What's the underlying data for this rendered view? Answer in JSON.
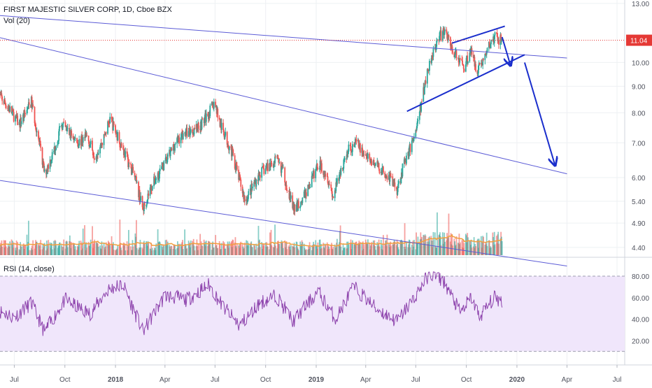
{
  "header": {
    "symbol_line": "FIRST MAJESTIC SILVER CORP, 1D, Cboe BZX",
    "vol_label": "Vol (20)"
  },
  "rsi_label": "RSI (14, close)",
  "last_price_badge": "11.04",
  "colors": {
    "up": "#26a69a",
    "down": "#ef5350",
    "channel": "#5b5bd6",
    "annotation": "#1a2ecc",
    "rsi_line": "#8e44ad",
    "rsi_band": "#f0e6fb",
    "volume_ma": "#f0a040",
    "last_price": "#e53935"
  },
  "chart_data": [
    {
      "type": "candlestick",
      "title": "FIRST MAJESTIC SILVER CORP, 1D, Cboe BZX",
      "scale": "log",
      "ylim": [
        4.25,
        13.2
      ],
      "y_ticks": [
        "13.00",
        "11.04",
        "10.00",
        "9.00",
        "8.00",
        "7.00",
        "6.00",
        "5.40",
        "4.90",
        "4.40"
      ],
      "y_tick_values": [
        13.0,
        11.04,
        10.0,
        9.0,
        8.0,
        7.0,
        6.0,
        5.4,
        4.9,
        4.4
      ],
      "x_ticks": [
        "Jul",
        "Oct",
        "2018",
        "Apr",
        "Jul",
        "Oct",
        "2019",
        "Apr",
        "Jul",
        "Oct",
        "2020",
        "Apr",
        "Jul"
      ],
      "x_tick_dates": [
        "2017-07-01",
        "2017-10-01",
        "2018-01-01",
        "2018-04-01",
        "2018-07-01",
        "2018-10-01",
        "2019-01-01",
        "2019-04-01",
        "2019-07-01",
        "2019-10-01",
        "2020-01-01",
        "2020-04-01",
        "2020-07-01"
      ],
      "last_price": 11.04,
      "price_path": [
        [
          "2017-06-01",
          8.7
        ],
        [
          "2017-06-20",
          8.2
        ],
        [
          "2017-07-10",
          7.6
        ],
        [
          "2017-08-01",
          8.4
        ],
        [
          "2017-08-12",
          7.3
        ],
        [
          "2017-08-25",
          6.1
        ],
        [
          "2017-09-10",
          6.7
        ],
        [
          "2017-09-25",
          7.6
        ],
        [
          "2017-10-10",
          7.3
        ],
        [
          "2017-10-25",
          7.0
        ],
        [
          "2017-11-10",
          7.2
        ],
        [
          "2017-11-25",
          6.6
        ],
        [
          "2017-12-10",
          7.1
        ],
        [
          "2017-12-22",
          7.8
        ],
        [
          "2018-01-05",
          7.2
        ],
        [
          "2018-01-20",
          6.6
        ],
        [
          "2018-02-05",
          6.0
        ],
        [
          "2018-02-20",
          5.2
        ],
        [
          "2018-03-05",
          5.7
        ],
        [
          "2018-03-20",
          6.1
        ],
        [
          "2018-04-05",
          6.5
        ],
        [
          "2018-04-20",
          7.0
        ],
        [
          "2018-05-05",
          7.3
        ],
        [
          "2018-05-20",
          7.4
        ],
        [
          "2018-06-05",
          7.6
        ],
        [
          "2018-06-20",
          8.0
        ],
        [
          "2018-07-01",
          8.4
        ],
        [
          "2018-07-10",
          7.6
        ],
        [
          "2018-07-20",
          7.2
        ],
        [
          "2018-08-01",
          6.7
        ],
        [
          "2018-08-15",
          5.9
        ],
        [
          "2018-08-25",
          5.4
        ],
        [
          "2018-09-05",
          5.7
        ],
        [
          "2018-09-20",
          6.1
        ],
        [
          "2018-10-05",
          6.3
        ],
        [
          "2018-10-20",
          6.5
        ],
        [
          "2018-11-01",
          6.2
        ],
        [
          "2018-11-12",
          5.6
        ],
        [
          "2018-11-22",
          5.2
        ],
        [
          "2018-12-05",
          5.4
        ],
        [
          "2018-12-20",
          5.8
        ],
        [
          "2019-01-05",
          6.4
        ],
        [
          "2019-01-20",
          6.1
        ],
        [
          "2019-02-01",
          5.5
        ],
        [
          "2019-02-15",
          6.2
        ],
        [
          "2019-03-01",
          6.8
        ],
        [
          "2019-03-15",
          7.0
        ],
        [
          "2019-04-01",
          6.6
        ],
        [
          "2019-04-15",
          6.4
        ],
        [
          "2019-05-01",
          6.2
        ],
        [
          "2019-05-15",
          6.0
        ],
        [
          "2019-05-28",
          5.7
        ],
        [
          "2019-06-10",
          6.4
        ],
        [
          "2019-06-22",
          6.9
        ],
        [
          "2019-07-01",
          7.4
        ],
        [
          "2019-07-10",
          8.2
        ],
        [
          "2019-07-20",
          9.4
        ],
        [
          "2019-08-01",
          10.5
        ],
        [
          "2019-08-12",
          11.2
        ],
        [
          "2019-08-25",
          11.5
        ],
        [
          "2019-09-05",
          10.6
        ],
        [
          "2019-09-15",
          10.2
        ],
        [
          "2019-09-28",
          9.8
        ],
        [
          "2019-10-08",
          10.6
        ],
        [
          "2019-10-20",
          9.7
        ],
        [
          "2019-11-01",
          10.1
        ],
        [
          "2019-11-12",
          10.8
        ],
        [
          "2019-11-22",
          11.2
        ],
        [
          "2019-12-05",
          11.0
        ]
      ]
    },
    {
      "type": "bar",
      "title": "Vol (20)",
      "series": [
        {
          "values": "daily volume bars with 20-period moving average"
        }
      ]
    },
    {
      "type": "line",
      "title": "RSI (14, close)",
      "ylim": [
        0,
        95
      ],
      "y_ticks": [
        "80.00",
        "60.00",
        "40.00",
        "20.00"
      ],
      "y_tick_values": [
        80,
        60,
        40,
        20
      ],
      "band": [
        10,
        80
      ],
      "rsi_path": [
        [
          "2017-06-01",
          48
        ],
        [
          "2017-07-01",
          42
        ],
        [
          "2017-08-01",
          55
        ],
        [
          "2017-08-25",
          28
        ],
        [
          "2017-10-01",
          58
        ],
        [
          "2017-11-15",
          45
        ],
        [
          "2017-12-20",
          68
        ],
        [
          "2018-01-15",
          72
        ],
        [
          "2018-02-20",
          28
        ],
        [
          "2018-04-01",
          62
        ],
        [
          "2018-05-10",
          58
        ],
        [
          "2018-06-20",
          72
        ],
        [
          "2018-07-15",
          52
        ],
        [
          "2018-08-15",
          34
        ],
        [
          "2018-09-20",
          55
        ],
        [
          "2018-10-20",
          62
        ],
        [
          "2018-11-20",
          38
        ],
        [
          "2019-01-05",
          66
        ],
        [
          "2019-02-05",
          40
        ],
        [
          "2019-03-10",
          70
        ],
        [
          "2019-04-20",
          50
        ],
        [
          "2019-05-28",
          38
        ],
        [
          "2019-07-01",
          62
        ],
        [
          "2019-07-25",
          82
        ],
        [
          "2019-08-20",
          76
        ],
        [
          "2019-09-20",
          46
        ],
        [
          "2019-10-10",
          60
        ],
        [
          "2019-10-25",
          42
        ],
        [
          "2019-11-20",
          60
        ],
        [
          "2019-12-05",
          57
        ]
      ]
    }
  ],
  "channel_lines": [
    {
      "name": "upper-channel",
      "from": [
        "2017-05-01",
        12.4
      ],
      "to": [
        "2020-04-01",
        10.2
      ]
    },
    {
      "name": "middle-channel",
      "from": [
        "2017-05-01",
        11.4
      ],
      "to": [
        "2020-04-01",
        6.1
      ]
    },
    {
      "name": "lower-channel",
      "from": [
        "2017-05-01",
        6.0
      ],
      "to": [
        "2020-04-01",
        4.05
      ]
    }
  ],
  "annotation_lines": [
    {
      "name": "flag-top",
      "from": [
        "2019-09-05",
        10.9
      ],
      "to": [
        "2019-12-10",
        11.75
      ]
    },
    {
      "name": "flag-bottom",
      "from": [
        "2019-06-15",
        8.05
      ],
      "to": [
        "2020-01-15",
        10.35
      ]
    },
    {
      "name": "arrow-small",
      "from": [
        "2019-12-05",
        11.2
      ],
      "to": [
        "2019-12-20",
        9.9
      ],
      "arrow": true
    },
    {
      "name": "arrow-large",
      "from": [
        "2020-01-15",
        10.0
      ],
      "to": [
        "2020-03-10",
        6.35
      ],
      "arrow": true
    }
  ]
}
